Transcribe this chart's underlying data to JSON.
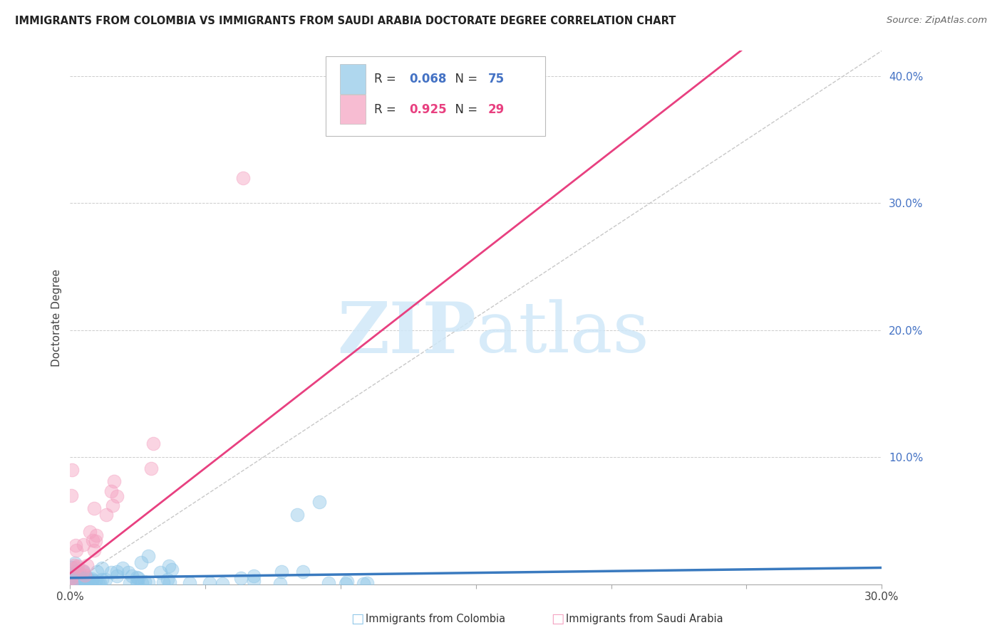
{
  "title": "IMMIGRANTS FROM COLOMBIA VS IMMIGRANTS FROM SAUDI ARABIA DOCTORATE DEGREE CORRELATION CHART",
  "source": "Source: ZipAtlas.com",
  "ylabel": "Doctorate Degree",
  "xlim": [
    0.0,
    0.3
  ],
  "ylim": [
    0.0,
    0.42
  ],
  "colombia_R": 0.068,
  "colombia_N": 75,
  "saudi_R": 0.925,
  "saudi_N": 29,
  "colombia_color": "#8ec6e8",
  "saudi_color": "#f4a0c0",
  "colombia_line_color": "#3a7abf",
  "saudi_line_color": "#e84080",
  "colombia_text_color": "#4472c4",
  "saudi_text_color": "#e84080",
  "ytick_color": "#4472c4",
  "watermark_color": "#d0e8f8",
  "background_color": "#ffffff",
  "grid_color": "#cccccc",
  "ref_line_color": "#c8c8c8"
}
